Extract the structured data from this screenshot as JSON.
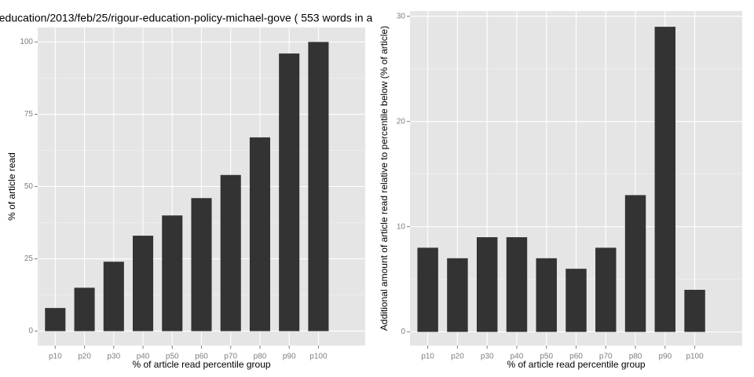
{
  "chart_data": [
    {
      "type": "bar",
      "title": "education/2013/feb/25/rigour-education-policy-michael-gove ( 553 words in a",
      "xlabel": "% of article read percentile group",
      "ylabel": "% of article read",
      "categories": [
        "p10",
        "p20",
        "p30",
        "p40",
        "p50",
        "p60",
        "p70",
        "p80",
        "p90",
        "p100"
      ],
      "values": [
        8,
        15,
        24,
        33,
        40,
        46,
        54,
        67,
        96,
        100
      ],
      "color": "#333333",
      "ylim": [
        -5,
        105
      ],
      "yticks": [
        0,
        25,
        50,
        75,
        100
      ],
      "grid": true
    },
    {
      "type": "bar",
      "xlabel": "% of article read percentile group",
      "ylabel": "Additional amount of article read relative to percentile below (% of article)",
      "categories": [
        "p10",
        "p20",
        "p30",
        "p40",
        "p50",
        "p60",
        "p70",
        "p80",
        "p90",
        "p100"
      ],
      "values": [
        8,
        7,
        9,
        9,
        7,
        6,
        8,
        13,
        29,
        4
      ],
      "color": "#333333",
      "ylim": [
        -1.3,
        30.5
      ],
      "yticks": [
        0,
        10,
        20,
        30
      ],
      "grid": true
    }
  ]
}
